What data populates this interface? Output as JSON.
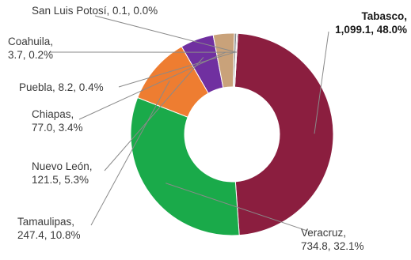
{
  "chart_data": {
    "type": "pie",
    "title": "",
    "donut": true,
    "legend": "none",
    "slices": [
      {
        "name": "Tabasco",
        "value": 1099.1,
        "percent": 48.0,
        "color": "#8b1e3f",
        "line1": "Tabasco,",
        "line2": "1,099.1, 48.0%"
      },
      {
        "name": "Veracruz",
        "value": 734.8,
        "percent": 32.1,
        "color": "#1aaa4a",
        "line1": "Veracruz,",
        "line2": "734.8, 32.1%"
      },
      {
        "name": "Tamaulipas",
        "value": 247.4,
        "percent": 10.8,
        "color": "#ee7d31",
        "line1": "Tamaulipas,",
        "line2": "247.4, 10.8%"
      },
      {
        "name": "Nuevo León",
        "value": 121.5,
        "percent": 5.3,
        "color": "#7030a0",
        "line1": "Nuevo León,",
        "line2": "121.5, 5.3%"
      },
      {
        "name": "Chiapas",
        "value": 77.0,
        "percent": 3.4,
        "color": "#c9a27a",
        "line1": "Chiapas,",
        "line2": "77.0, 3.4%"
      },
      {
        "name": "Puebla",
        "value": 8.2,
        "percent": 0.4,
        "color": "#8c8c8c",
        "line1": "Puebla, 8.2, 0.4%",
        "line2": ""
      },
      {
        "name": "Coahuila",
        "value": 3.7,
        "percent": 0.2,
        "color": "#5a5a7a",
        "line1": "Coahuila,",
        "line2": "3.7, 0.2%"
      },
      {
        "name": "San Luis Potosí",
        "value": 0.1,
        "percent": 0.0,
        "color": "#2f2f2f",
        "line1": "San Luis Potosí, 0.1, 0.0%",
        "line2": ""
      }
    ]
  }
}
